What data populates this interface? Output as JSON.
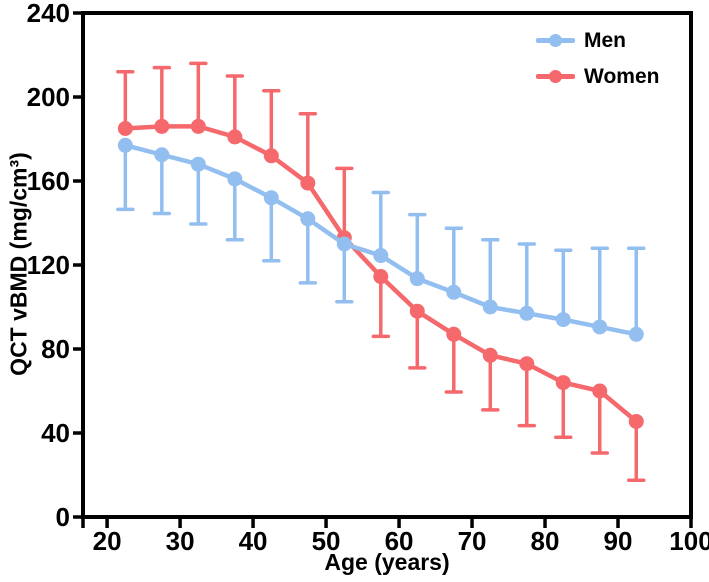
{
  "chart_data": {
    "type": "line",
    "title": "",
    "xlabel": "Age (years)",
    "ylabel": "QCT vBMD (mg/cm³)",
    "x": [
      22.5,
      27.5,
      32.5,
      37.5,
      42.5,
      47.5,
      52.5,
      57.5,
      62.5,
      67.5,
      72.5,
      77.5,
      82.5,
      87.5,
      92.5
    ],
    "xlim": [
      16.7,
      100
    ],
    "ylim": [
      0,
      240
    ],
    "xticks": [
      20,
      30,
      40,
      50,
      60,
      70,
      80,
      90,
      100
    ],
    "yticks": [
      0,
      40,
      80,
      120,
      160,
      200,
      240
    ],
    "grid": false,
    "frame": true,
    "axis_color": "#000000",
    "legend_position": "top-right-inside",
    "series": [
      {
        "name": "Men",
        "color": "#92BEF0",
        "values": [
          177,
          172.5,
          168,
          161,
          152,
          142,
          130,
          124.5,
          113.5,
          107,
          100,
          97,
          94,
          90.5,
          87
        ],
        "error": [
          30.5,
          28,
          28.5,
          29,
          30,
          30.5,
          27.5,
          30,
          30.5,
          30.5,
          32,
          33,
          33,
          37.5,
          41
        ],
        "error_side": [
          "down",
          "down",
          "down",
          "down",
          "down",
          "down",
          "down",
          "up",
          "up",
          "up",
          "up",
          "up",
          "up",
          "up",
          "up"
        ]
      },
      {
        "name": "Women",
        "color": "#F5696D",
        "values": [
          185,
          186,
          186,
          181,
          172,
          159,
          133,
          114.5,
          98,
          87,
          77,
          73,
          64,
          60,
          45.5
        ],
        "error": [
          27,
          28,
          30,
          29,
          31,
          33,
          33,
          28.5,
          27,
          27.5,
          26,
          29.5,
          26,
          29.5,
          28
        ],
        "error_side": [
          "up",
          "up",
          "up",
          "up",
          "up",
          "up",
          "up",
          "down",
          "down",
          "down",
          "down",
          "down",
          "down",
          "down",
          "down"
        ]
      }
    ]
  }
}
